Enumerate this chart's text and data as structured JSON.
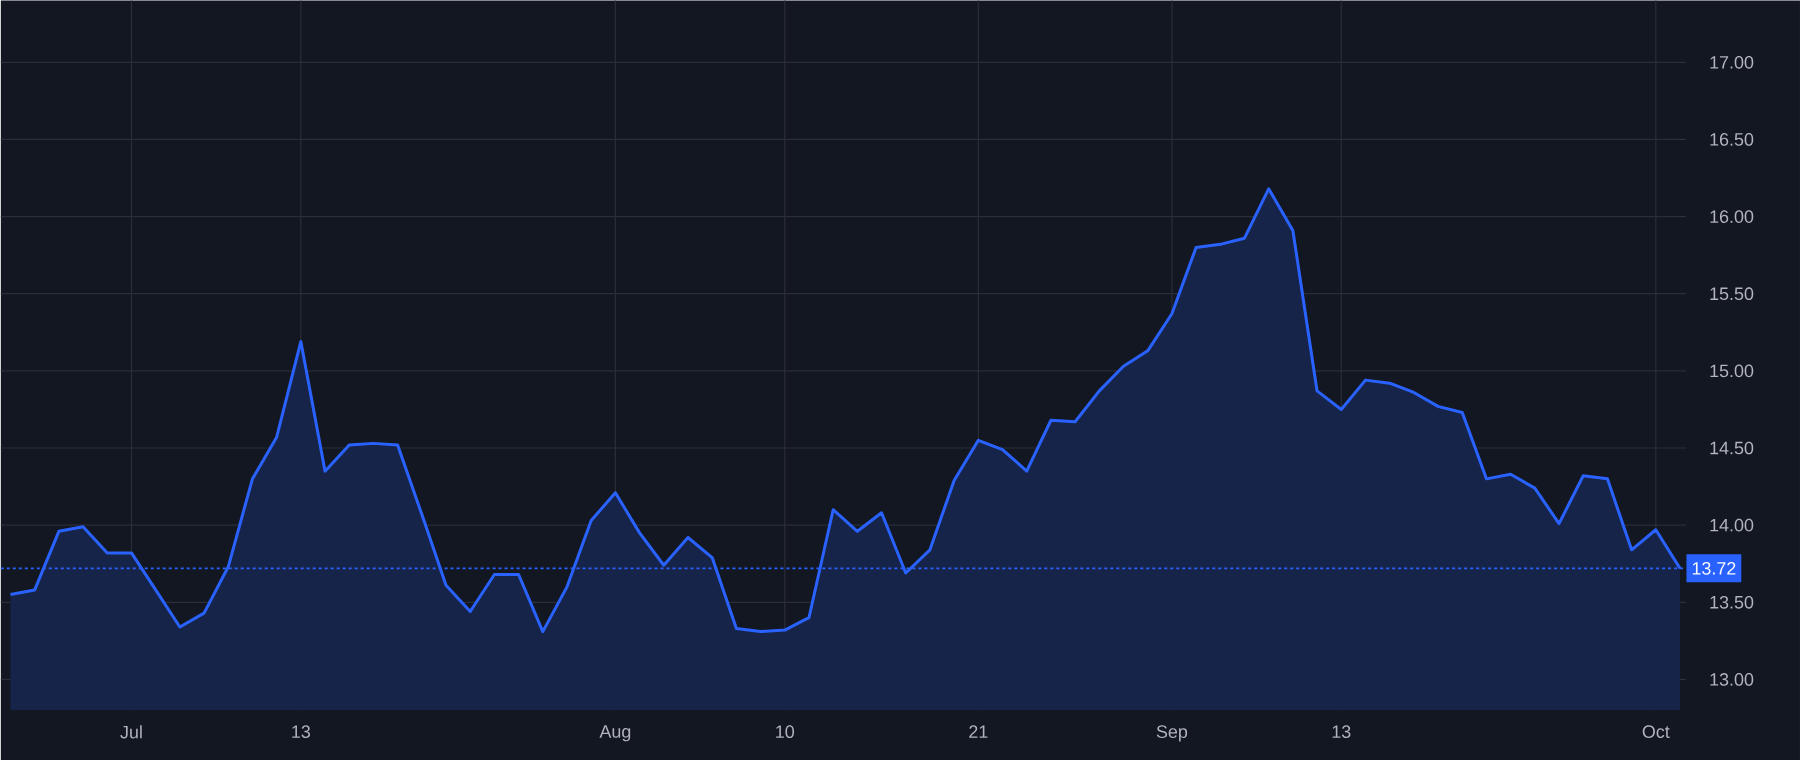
{
  "chart_data": {
    "type": "area",
    "categories": [
      null,
      null,
      null,
      null,
      null,
      "Jul",
      null,
      null,
      null,
      null,
      null,
      null,
      "13",
      null,
      null,
      null,
      null,
      null,
      null,
      null,
      null,
      null,
      null,
      null,
      null,
      "Aug",
      null,
      null,
      null,
      null,
      null,
      null,
      "10",
      null,
      null,
      null,
      null,
      null,
      null,
      null,
      "21",
      null,
      null,
      null,
      null,
      null,
      null,
      null,
      "Sep",
      null,
      null,
      null,
      null,
      null,
      null,
      "13",
      null,
      null,
      null,
      null,
      null,
      null,
      null,
      null,
      null,
      null,
      null,
      null,
      "Oct",
      null
    ],
    "series": [
      {
        "color": "#2962ff",
        "values": [
          13.55,
          13.58,
          13.96,
          13.99,
          13.82,
          13.82,
          13.58,
          13.34,
          13.43,
          13.73,
          14.3,
          14.57,
          15.19,
          14.35,
          14.52,
          14.53,
          14.52,
          14.07,
          13.61,
          13.44,
          13.68,
          13.68,
          13.31,
          13.6,
          14.03,
          14.21,
          13.95,
          13.74,
          13.92,
          13.79,
          13.33,
          13.31,
          13.32,
          13.4,
          14.1,
          13.96,
          14.08,
          13.69,
          13.84,
          14.29,
          14.55,
          14.49,
          14.35,
          14.68,
          14.67,
          14.87,
          15.03,
          15.13,
          15.37,
          15.8,
          15.82,
          15.86,
          16.18,
          15.91,
          14.87,
          14.75,
          14.94,
          14.92,
          14.86,
          14.77,
          14.73,
          14.3,
          14.33,
          14.24,
          14.01,
          14.32,
          14.3,
          13.84,
          13.97,
          13.72
        ]
      }
    ],
    "ylim": [
      12.8,
      17.4
    ],
    "yticks": [
      {
        "value": 13,
        "label": "13.00"
      },
      {
        "value": 13.5,
        "label": "13.50"
      },
      {
        "value": 14,
        "label": "14.00"
      },
      {
        "value": 14.5,
        "label": "14.50"
      },
      {
        "value": 15,
        "label": "15.00"
      },
      {
        "value": 15.5,
        "label": "15.50"
      },
      {
        "value": 16,
        "label": "16.00"
      },
      {
        "value": 16.5,
        "label": "16.50"
      },
      {
        "value": 17,
        "label": "17.00"
      }
    ],
    "grid": true,
    "ref_lines": [
      {
        "axis": "y",
        "value": 13.72,
        "label": "13.72",
        "color": "#2962ff",
        "line_style": "dotted"
      }
    ]
  }
}
